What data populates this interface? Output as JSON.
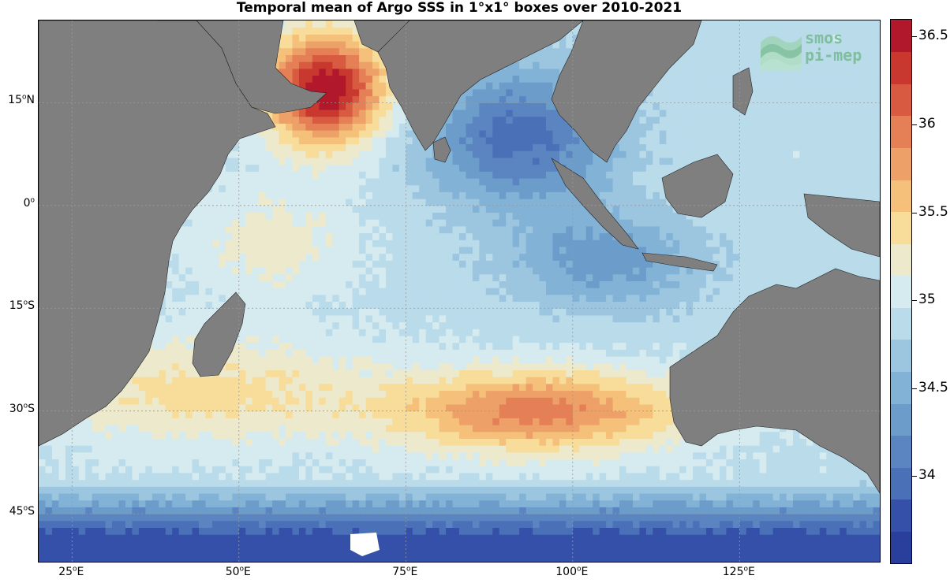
{
  "title": "Temporal mean of Argo SSS in 1°x1° boxes over 2010-2021",
  "logo": {
    "line1": "smos",
    "line2": "pi-mep"
  },
  "axes": {
    "lat_ticks": [
      {
        "deg": "15",
        "hemi": "N",
        "value": 15
      },
      {
        "deg": "0",
        "hemi": "",
        "value": 0
      },
      {
        "deg": "15",
        "hemi": "S",
        "value": -15
      },
      {
        "deg": "30",
        "hemi": "S",
        "value": -30
      },
      {
        "deg": "45",
        "hemi": "S",
        "value": -45
      }
    ],
    "lon_ticks": [
      {
        "deg": "25",
        "hemi": "E",
        "value": 25
      },
      {
        "deg": "50",
        "hemi": "E",
        "value": 50
      },
      {
        "deg": "75",
        "hemi": "E",
        "value": 75
      },
      {
        "deg": "100",
        "hemi": "E",
        "value": 100
      },
      {
        "deg": "125",
        "hemi": "E",
        "value": 125
      }
    ],
    "lon_range": [
      20,
      146
    ],
    "lat_range": [
      -52,
      27
    ]
  },
  "colorbar": {
    "range": [
      33.5,
      36.6
    ],
    "tick_labels": [
      "36.5",
      "36",
      "35.5",
      "35",
      "34.5",
      "34"
    ],
    "tick_values": [
      36.5,
      36.0,
      35.5,
      35.0,
      34.5,
      34.0
    ],
    "colors": [
      "#2a3e9c",
      "#3450a8",
      "#4a70b8",
      "#5a85c0",
      "#6c9cca",
      "#82b2d6",
      "#9cc6e0",
      "#b9dbea",
      "#d6ebf0",
      "#ece9cc",
      "#f7dc9a",
      "#f4c07a",
      "#eda067",
      "#e47f56",
      "#d85b41",
      "#c8382f",
      "#b2182b"
    ]
  },
  "colors": {
    "land": "#7f7f7f",
    "grid": "#9a9a9a"
  }
}
